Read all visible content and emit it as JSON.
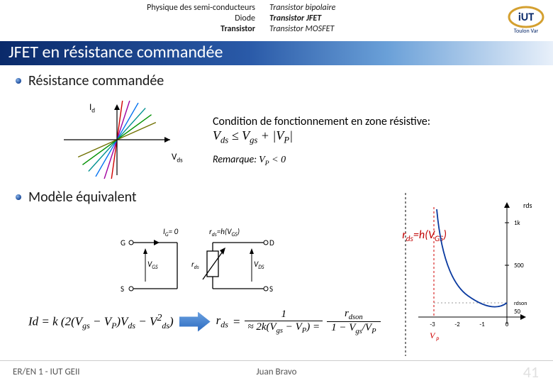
{
  "header": {
    "left_lines": [
      "Physique des semi-conducteurs",
      "Diode",
      "Transistor"
    ],
    "right_lines": [
      "Transistor bipolaire",
      "Transistor JFET",
      "Transistor MOSFET"
    ],
    "right_bold_index": 1,
    "logo_text_top": "iUT",
    "logo_text_bottom": "Toulon Var"
  },
  "title": "JFET en résistance commandée",
  "section1": {
    "heading": "Résistance commandée",
    "id_label": "I",
    "id_sub": "d",
    "vds_label": "V",
    "vds_sub": "ds",
    "iv_lines": {
      "colors": [
        "#d00000",
        "#a000a0",
        "#0070f0",
        "#009090",
        "#009000",
        "#707000"
      ],
      "angles_deg": [
        82,
        72,
        60,
        48,
        36,
        24
      ],
      "axis_color": "#000000",
      "stroke_width": 1.4
    },
    "condition_label": "Condition de fonctionnement en zone résistive:",
    "condition_math_html": "V<sub>ds</sub> ≤ V<sub>gs</sub> + |V<sub>P</sub>|",
    "remark_prefix": "Remarque: ",
    "remark_math_html": "V<sub>P</sub> &lt; 0"
  },
  "section2": {
    "heading": "Modèle équivalent",
    "ig_label_html": "I<sub>G</sub>= 0",
    "rds_label_html": "r<sub>ds</sub>=h(V<sub>GS</sub>)",
    "G": "G",
    "D": "D",
    "S": "S",
    "vgs_html": "V<sub>GS</sub>",
    "rds_sym_html": "r<sub>ds</sub>",
    "vds_html": "V<sub>DS</sub>",
    "rds_curve_label_html": "r<sub>ds</sub>=h(V<sub>GS</sub>)",
    "curve": {
      "axis_label_y_html": "r<sub>ds</sub> (Ω)",
      "axis_label_x_html": "V<sub>P</sub>",
      "x_ticks": [
        "-3",
        "-2",
        "-1",
        "0"
      ],
      "y_ticks": [
        "1k",
        "500",
        "r<sub>dson</sub>",
        "50"
      ],
      "line_color": "#000000",
      "curve_color": "#0a3aa0",
      "asymptote_color": "#d00000"
    }
  },
  "formula": {
    "lhs_html": "Id = k (2(V<sub>gs</sub> − V<sub>P</sub>)V<sub>ds</sub> − V<sup>2</sup><sub>ds</sub>)",
    "mid_html": "r<sub>ds</sub>",
    "approx_html": "≈ 2k(V<sub>gs</sub> − V<sub>P</sub>) = ",
    "rhs_num_html": "r<sub>dson</sub>",
    "rhs_den_html": "1 − V<sub>gs</sub>/V<sub>P</sub>",
    "one_over_html": "1"
  },
  "footer": {
    "left": "ER/EN 1 - IUT GEII",
    "center": "Juan Bravo",
    "page": "41"
  }
}
